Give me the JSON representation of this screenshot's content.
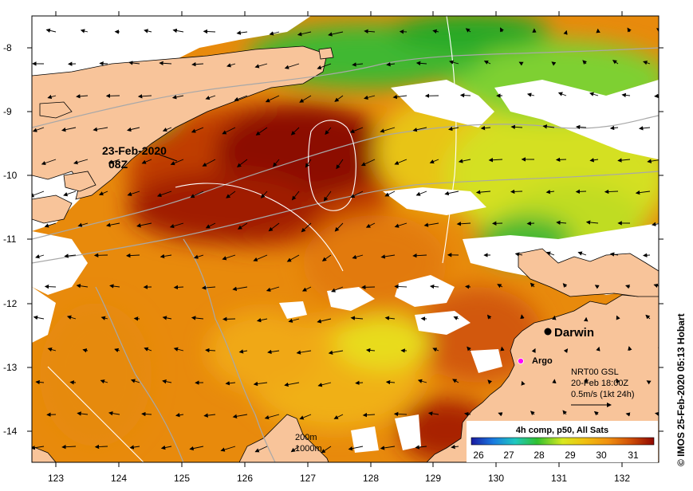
{
  "map": {
    "lon_ticks": [
      "123",
      "124",
      "125",
      "126",
      "127",
      "128",
      "129",
      "130",
      "131",
      "132"
    ],
    "lat_ticks": [
      "-8",
      "-9",
      "-10",
      "-11",
      "-12",
      "-13",
      "-14"
    ],
    "annotations": {
      "date_line1": "23-Feb-2020",
      "date_line2": "08Z",
      "city": "Darwin",
      "float": "Argo",
      "contour_1": "200m",
      "contour_2": "1000m"
    },
    "current_key": {
      "line1": "NRT00 GSL",
      "line2": "20-Feb 18:00Z",
      "line3": "0.5m/s (1kt 24h)"
    },
    "legend": {
      "title": "4h comp, p50, All Sats",
      "ticks": [
        "26",
        "27",
        "28",
        "29",
        "30",
        "31"
      ]
    },
    "credit": "© IMOS 25-Feb-2020 05:13 Hobart",
    "colors": {
      "land": "#f8c49a",
      "ocean_hot": "#8c0a00",
      "ocean_warm": "#d86a08",
      "ocean_mid": "#f0a010",
      "ocean_cool": "#e6e418",
      "ocean_cold": "#2ab42a",
      "argo_marker": "#ff00ff"
    }
  }
}
